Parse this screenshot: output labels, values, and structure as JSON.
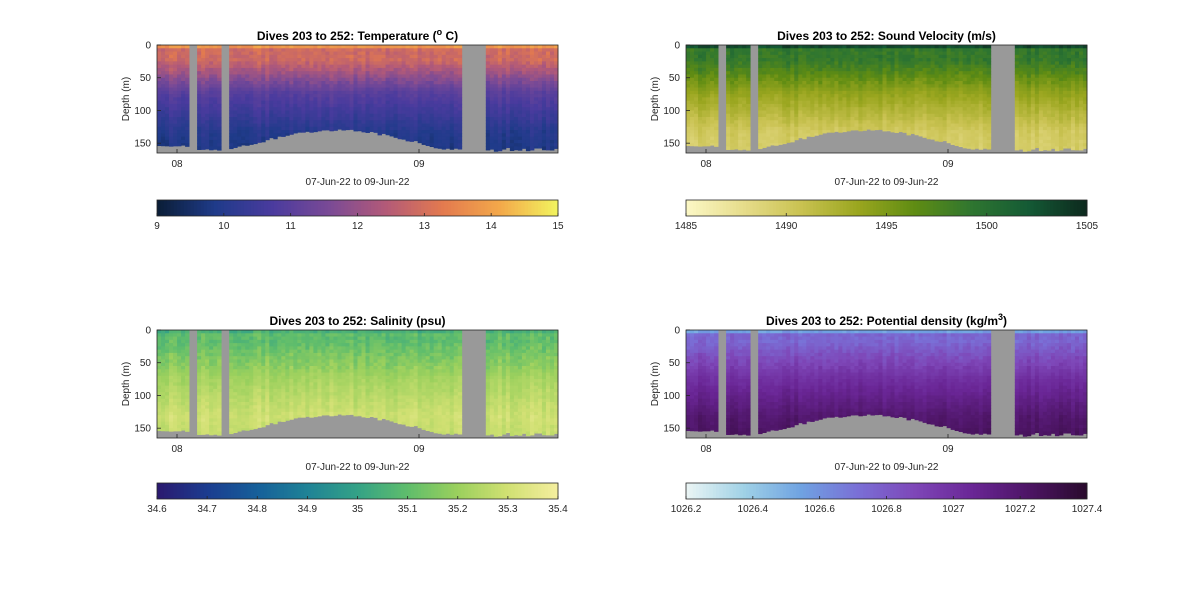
{
  "chart_data": [
    {
      "type": "heatmap",
      "title": "Dives 203 to 252: Temperature (",
      "title_sup": "o",
      "title_suffix": " C)",
      "ylabel": "Depth (m)",
      "xlabel": "07-Jun-22 to 09-Jun-22",
      "yticks": [
        "0",
        "50",
        "100",
        "150"
      ],
      "ylim": [
        0,
        165
      ],
      "xticks": [
        "08",
        "09"
      ],
      "colorbar_ticks": [
        "9",
        "10",
        "11",
        "12",
        "13",
        "14",
        "15"
      ],
      "colorbar_range": [
        9,
        15
      ],
      "colormap": [
        "#0b1e38",
        "#1f3b8a",
        "#4a3b9e",
        "#7a4a96",
        "#b35a78",
        "#e37a4f",
        "#f3a84a",
        "#f2f25e"
      ],
      "profile": {
        "surface": 13.8,
        "mixed_depth": 20,
        "mixed_value": 12.9,
        "thermocline": 11.0,
        "deep": 10.0,
        "bottom_value": 9.8,
        "noise": 0.35
      }
    },
    {
      "type": "heatmap",
      "title": "Dives 203 to 252: Sound Velocity (m/s)",
      "ylabel": "Depth (m)",
      "xlabel": "07-Jun-22 to 09-Jun-22",
      "yticks": [
        "0",
        "50",
        "100",
        "150"
      ],
      "ylim": [
        0,
        165
      ],
      "xticks": [
        "08",
        "09"
      ],
      "colorbar_ticks": [
        "1485",
        "1490",
        "1495",
        "1500",
        "1505"
      ],
      "colorbar_range": [
        1485,
        1505
      ],
      "colormap": [
        "#fbf7c4",
        "#e6dc8a",
        "#c9c251",
        "#9aa61f",
        "#5f8c13",
        "#2f7630",
        "#145a35",
        "#0d2a1e"
      ],
      "profile": {
        "surface": 1503,
        "mixed_depth": 20,
        "mixed_value": 1499,
        "thermocline": 1494,
        "deep": 1490,
        "bottom_value": 1489.5,
        "noise": 1.2
      }
    },
    {
      "type": "heatmap",
      "title": "Dives 203 to 252: Salinity (psu)",
      "ylabel": "Depth (m)",
      "xlabel": "07-Jun-22 to 09-Jun-22",
      "yticks": [
        "0",
        "50",
        "100",
        "150"
      ],
      "ylim": [
        0,
        165
      ],
      "xticks": [
        "08",
        "09"
      ],
      "colorbar_ticks": [
        "34.6",
        "34.7",
        "34.8",
        "34.9",
        "35",
        "35.1",
        "35.2",
        "35.3",
        "35.4"
      ],
      "colorbar_range": [
        34.6,
        35.4
      ],
      "colormap": [
        "#2a1a70",
        "#1b3d90",
        "#16609a",
        "#1f8396",
        "#34a286",
        "#5fbd6c",
        "#9ad05d",
        "#d0e072",
        "#f3ee9d"
      ],
      "profile": {
        "surface": 35.05,
        "mixed_depth": 15,
        "mixed_value": 35.1,
        "thermocline": 35.22,
        "deep": 35.3,
        "bottom_value": 35.28,
        "noise": 0.05
      }
    },
    {
      "type": "heatmap",
      "title": "Dives 203 to 252: Potential density (kg/m",
      "title_sup": "3",
      "title_suffix": ")",
      "ylabel": "Depth (m)",
      "xlabel": "07-Jun-22 to 09-Jun-22",
      "yticks": [
        "0",
        "50",
        "100",
        "150"
      ],
      "ylim": [
        0,
        165
      ],
      "xticks": [
        "08",
        "09"
      ],
      "colorbar_ticks": [
        "1026.2",
        "1026.4",
        "1026.6",
        "1026.8",
        "1027",
        "1027.2",
        "1027.4"
      ],
      "colorbar_range": [
        1026.2,
        1027.4
      ],
      "colormap": [
        "#e9f4f4",
        "#9fd1e6",
        "#6fa2e2",
        "#7a6fd6",
        "#7e47b8",
        "#6a2696",
        "#4d1565",
        "#2a0a2e"
      ],
      "profile": {
        "surface": 1026.55,
        "mixed_depth": 15,
        "mixed_value": 1026.75,
        "thermocline": 1027.0,
        "deep": 1027.2,
        "bottom_value": 1027.25,
        "noise": 0.06
      }
    }
  ]
}
